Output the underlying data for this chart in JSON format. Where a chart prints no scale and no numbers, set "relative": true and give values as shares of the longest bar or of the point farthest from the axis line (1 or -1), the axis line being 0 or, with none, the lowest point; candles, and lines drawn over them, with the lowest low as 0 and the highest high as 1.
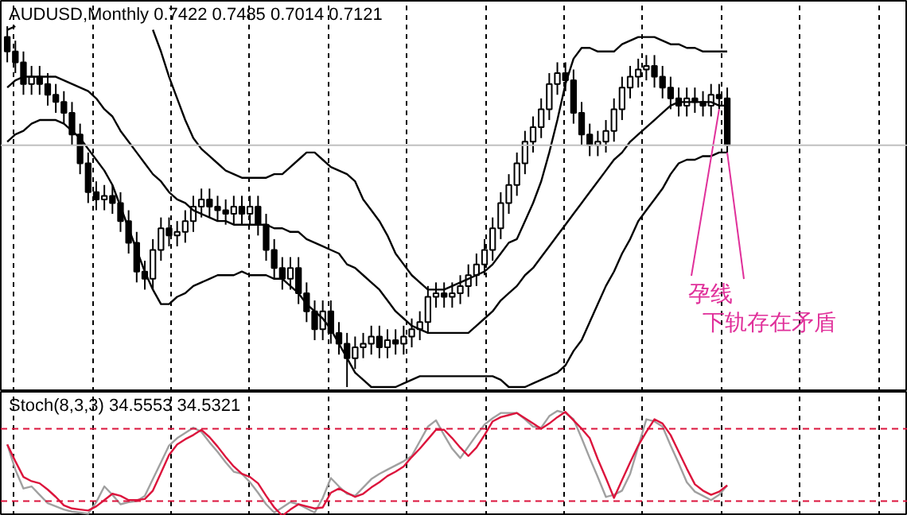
{
  "chart_data": [
    {
      "type": "candlestick",
      "title": "AUDUSD,Monthly 0.7422 0.7485 0.7014 0.7121",
      "relative": true,
      "tick_labels": false,
      "grid": "x",
      "categories": [
        null,
        null,
        null,
        null,
        null,
        null,
        null,
        null,
        null,
        null,
        null,
        null,
        null,
        null,
        null,
        null,
        null,
        null,
        null,
        null,
        null,
        null,
        null,
        null,
        null,
        null,
        null,
        null,
        null,
        null,
        null,
        null,
        null,
        null,
        null,
        null,
        null,
        null,
        null,
        null,
        null,
        null,
        null,
        null,
        null,
        null,
        null,
        null,
        null,
        null,
        null,
        null,
        null,
        null,
        null,
        null,
        null,
        null,
        null,
        null,
        null,
        null,
        null,
        null,
        null,
        null,
        null,
        null,
        null,
        null,
        null,
        null,
        null,
        null,
        null,
        null,
        null,
        null,
        null,
        null,
        null,
        null,
        null,
        null,
        null,
        null,
        null,
        null,
        null,
        null
      ],
      "ohlc": [
        [
          0.97,
          1.0,
          0.9,
          0.93
        ],
        [
          0.93,
          0.96,
          0.87,
          0.9
        ],
        [
          0.9,
          0.93,
          0.81,
          0.84
        ],
        [
          0.84,
          0.89,
          0.81,
          0.86
        ],
        [
          0.86,
          0.89,
          0.81,
          0.84
        ],
        [
          0.84,
          0.87,
          0.78,
          0.81
        ],
        [
          0.81,
          0.84,
          0.76,
          0.79
        ],
        [
          0.79,
          0.82,
          0.73,
          0.76
        ],
        [
          0.76,
          0.79,
          0.67,
          0.7
        ],
        [
          0.7,
          0.73,
          0.59,
          0.62
        ],
        [
          0.62,
          0.65,
          0.51,
          0.54
        ],
        [
          0.54,
          0.57,
          0.49,
          0.52
        ],
        [
          0.52,
          0.56,
          0.49,
          0.53
        ],
        [
          0.53,
          0.56,
          0.48,
          0.51
        ],
        [
          0.51,
          0.54,
          0.43,
          0.46
        ],
        [
          0.46,
          0.49,
          0.37,
          0.4
        ],
        [
          0.4,
          0.43,
          0.29,
          0.32
        ],
        [
          0.32,
          0.35,
          0.27,
          0.3
        ],
        [
          0.3,
          0.41,
          0.27,
          0.38
        ],
        [
          0.38,
          0.47,
          0.35,
          0.44
        ],
        [
          0.44,
          0.47,
          0.39,
          0.42
        ],
        [
          0.42,
          0.46,
          0.39,
          0.43
        ],
        [
          0.43,
          0.49,
          0.4,
          0.46
        ],
        [
          0.46,
          0.53,
          0.43,
          0.5
        ],
        [
          0.5,
          0.55,
          0.47,
          0.52
        ],
        [
          0.52,
          0.55,
          0.47,
          0.5
        ],
        [
          0.5,
          0.53,
          0.46,
          0.49
        ],
        [
          0.49,
          0.52,
          0.45,
          0.48
        ],
        [
          0.48,
          0.53,
          0.45,
          0.5
        ],
        [
          0.5,
          0.53,
          0.45,
          0.48
        ],
        [
          0.48,
          0.53,
          0.45,
          0.5
        ],
        [
          0.5,
          0.53,
          0.42,
          0.45
        ],
        [
          0.45,
          0.48,
          0.35,
          0.38
        ],
        [
          0.38,
          0.41,
          0.3,
          0.33
        ],
        [
          0.33,
          0.36,
          0.27,
          0.3
        ],
        [
          0.3,
          0.36,
          0.27,
          0.33
        ],
        [
          0.33,
          0.36,
          0.23,
          0.26
        ],
        [
          0.26,
          0.29,
          0.18,
          0.21
        ],
        [
          0.21,
          0.24,
          0.13,
          0.16
        ],
        [
          0.16,
          0.24,
          0.13,
          0.21
        ],
        [
          0.21,
          0.24,
          0.12,
          0.15
        ],
        [
          0.15,
          0.18,
          0.09,
          0.12
        ],
        [
          0.12,
          0.15,
          0.0,
          0.08
        ],
        [
          0.08,
          0.14,
          0.05,
          0.11
        ],
        [
          0.11,
          0.15,
          0.08,
          0.12
        ],
        [
          0.12,
          0.17,
          0.09,
          0.14
        ],
        [
          0.14,
          0.17,
          0.08,
          0.11
        ],
        [
          0.11,
          0.16,
          0.08,
          0.13
        ],
        [
          0.13,
          0.16,
          0.09,
          0.12
        ],
        [
          0.12,
          0.17,
          0.09,
          0.14
        ],
        [
          0.14,
          0.19,
          0.11,
          0.16
        ],
        [
          0.16,
          0.21,
          0.13,
          0.18
        ],
        [
          0.18,
          0.28,
          0.15,
          0.25
        ],
        [
          0.25,
          0.29,
          0.22,
          0.26
        ],
        [
          0.26,
          0.29,
          0.22,
          0.25
        ],
        [
          0.25,
          0.29,
          0.22,
          0.26
        ],
        [
          0.26,
          0.31,
          0.23,
          0.28
        ],
        [
          0.28,
          0.34,
          0.25,
          0.31
        ],
        [
          0.31,
          0.37,
          0.28,
          0.34
        ],
        [
          0.34,
          0.41,
          0.31,
          0.38
        ],
        [
          0.38,
          0.47,
          0.35,
          0.44
        ],
        [
          0.44,
          0.54,
          0.41,
          0.51
        ],
        [
          0.51,
          0.59,
          0.48,
          0.56
        ],
        [
          0.56,
          0.65,
          0.53,
          0.62
        ],
        [
          0.62,
          0.71,
          0.59,
          0.68
        ],
        [
          0.68,
          0.75,
          0.65,
          0.72
        ],
        [
          0.72,
          0.8,
          0.69,
          0.77
        ],
        [
          0.77,
          0.87,
          0.74,
          0.84
        ],
        [
          0.84,
          0.9,
          0.81,
          0.87
        ],
        [
          0.87,
          0.9,
          0.82,
          0.85
        ],
        [
          0.85,
          0.88,
          0.73,
          0.76
        ],
        [
          0.76,
          0.79,
          0.67,
          0.7
        ],
        [
          0.7,
          0.73,
          0.64,
          0.67
        ],
        [
          0.67,
          0.71,
          0.64,
          0.68
        ],
        [
          0.68,
          0.74,
          0.65,
          0.71
        ],
        [
          0.71,
          0.8,
          0.68,
          0.77
        ],
        [
          0.77,
          0.86,
          0.74,
          0.83
        ],
        [
          0.83,
          0.89,
          0.8,
          0.86
        ],
        [
          0.86,
          0.91,
          0.83,
          0.88
        ],
        [
          0.88,
          0.92,
          0.85,
          0.89
        ],
        [
          0.89,
          0.92,
          0.83,
          0.86
        ],
        [
          0.86,
          0.89,
          0.8,
          0.83
        ],
        [
          0.83,
          0.86,
          0.77,
          0.8
        ],
        [
          0.8,
          0.83,
          0.75,
          0.78
        ],
        [
          0.78,
          0.83,
          0.75,
          0.8
        ],
        [
          0.8,
          0.83,
          0.76,
          0.79
        ],
        [
          0.79,
          0.82,
          0.75,
          0.78
        ],
        [
          0.78,
          0.84,
          0.75,
          0.81
        ],
        [
          0.81,
          0.84,
          0.77,
          0.8
        ],
        [
          0.8,
          0.83,
          0.65,
          0.67
        ]
      ],
      "series": [
        {
          "type": "line",
          "color": "#000000",
          "values": [
            0.99,
            1.0,
            null,
            null,
            null,
            null,
            null,
            null,
            null,
            null,
            null,
            null,
            null,
            null,
            null,
            null,
            null,
            null,
            0.99,
            0.93,
            0.86,
            0.8,
            0.74,
            0.69,
            0.66,
            0.64,
            0.62,
            0.6,
            0.59,
            0.58,
            0.58,
            0.58,
            0.58,
            0.59,
            0.59,
            0.61,
            0.63,
            0.65,
            0.65,
            0.63,
            0.61,
            0.6,
            0.59,
            0.57,
            0.52,
            0.49,
            0.46,
            0.42,
            0.37,
            0.34,
            0.31,
            0.29,
            0.27,
            0.27,
            0.27,
            0.28,
            0.29,
            0.3,
            0.31,
            0.32,
            0.34,
            0.37,
            0.4,
            0.41,
            0.46,
            0.51,
            0.57,
            0.65,
            0.74,
            0.84,
            0.91,
            0.94,
            0.94,
            0.93,
            0.93,
            0.93,
            0.95,
            0.96,
            0.97,
            0.97,
            0.97,
            0.96,
            0.95,
            0.95,
            0.94,
            0.94,
            0.93,
            0.93,
            0.93,
            0.93
          ]
        },
        {
          "type": "line",
          "color": "#000000",
          "values": [
            0.83,
            0.85,
            0.86,
            0.86,
            0.86,
            0.86,
            0.86,
            0.85,
            0.84,
            0.83,
            0.82,
            0.8,
            0.77,
            0.75,
            0.71,
            0.68,
            0.65,
            0.62,
            0.59,
            0.57,
            0.54,
            0.52,
            0.51,
            0.49,
            0.48,
            0.47,
            0.46,
            0.46,
            0.45,
            0.45,
            0.45,
            0.45,
            0.45,
            0.44,
            0.44,
            0.43,
            0.43,
            0.41,
            0.4,
            0.39,
            0.38,
            0.37,
            0.34,
            0.33,
            0.31,
            0.29,
            0.27,
            0.24,
            0.21,
            0.19,
            0.17,
            0.16,
            0.15,
            0.15,
            0.15,
            0.15,
            0.15,
            0.15,
            0.17,
            0.19,
            0.21,
            0.24,
            0.26,
            0.28,
            0.31,
            0.33,
            0.36,
            0.39,
            0.42,
            0.45,
            0.48,
            0.51,
            0.54,
            0.57,
            0.6,
            0.63,
            0.65,
            0.68,
            0.7,
            0.72,
            0.74,
            0.76,
            0.78,
            0.79,
            0.79,
            0.79,
            0.79,
            0.79,
            0.78,
            0.78
          ]
        },
        {
          "type": "line",
          "color": "#000000",
          "values": [
            0.68,
            0.7,
            0.71,
            0.73,
            0.74,
            0.74,
            0.74,
            0.73,
            0.71,
            0.69,
            0.66,
            0.63,
            0.6,
            0.56,
            0.5,
            0.44,
            0.38,
            0.32,
            0.27,
            0.23,
            0.23,
            0.25,
            0.26,
            0.28,
            0.29,
            0.3,
            0.31,
            0.31,
            0.31,
            0.32,
            0.31,
            0.31,
            0.31,
            0.3,
            0.3,
            0.28,
            0.26,
            0.23,
            0.21,
            0.19,
            0.16,
            0.12,
            0.08,
            0.04,
            0.02,
            0.0,
            0.0,
            0.0,
            0.0,
            0.01,
            0.02,
            0.03,
            0.03,
            0.03,
            0.03,
            0.03,
            0.03,
            0.03,
            0.03,
            0.03,
            0.03,
            0.02,
            0.0,
            0.0,
            0.0,
            0.01,
            0.02,
            0.03,
            0.04,
            0.06,
            0.1,
            0.13,
            0.18,
            0.23,
            0.28,
            0.32,
            0.37,
            0.41,
            0.46,
            0.49,
            0.52,
            0.55,
            0.59,
            0.62,
            0.63,
            0.63,
            0.64,
            0.64,
            0.65,
            0.65
          ]
        }
      ],
      "ref_lines": [
        {
          "axis": "y",
          "value": 0.67,
          "color": "#c0c0c0",
          "line_style": "solid"
        }
      ],
      "annotations": [
        "孕线",
        "下轨存在矛盾"
      ]
    },
    {
      "type": "line",
      "title": "Stoch(8,3,3) 34.5553 34.5321",
      "relative": true,
      "tick_labels": false,
      "grid": "x",
      "categories": [
        null,
        null,
        null,
        null,
        null,
        null,
        null,
        null,
        null,
        null,
        null,
        null,
        null,
        null,
        null,
        null,
        null,
        null,
        null,
        null,
        null,
        null,
        null,
        null,
        null,
        null,
        null,
        null,
        null,
        null,
        null,
        null,
        null,
        null,
        null,
        null,
        null,
        null,
        null,
        null,
        null,
        null,
        null,
        null,
        null,
        null,
        null,
        null,
        null,
        null,
        null,
        null,
        null,
        null,
        null,
        null,
        null,
        null,
        null,
        null,
        null,
        null,
        null,
        null,
        null,
        null,
        null,
        null,
        null,
        null,
        null,
        null,
        null,
        null,
        null,
        null,
        null,
        null,
        null,
        null,
        null,
        null,
        null,
        null,
        null,
        null,
        null,
        null,
        null,
        null
      ],
      "series": [
        {
          "color": "#a0a0a0",
          "values": [
            0.68,
            0.44,
            0.26,
            0.28,
            0.2,
            0.12,
            0.09,
            0.06,
            0.04,
            0.03,
            0.02,
            0.13,
            0.28,
            0.2,
            0.11,
            0.13,
            0.14,
            0.19,
            0.35,
            0.51,
            0.67,
            0.74,
            0.79,
            0.84,
            0.8,
            0.7,
            0.61,
            0.51,
            0.42,
            0.4,
            0.32,
            0.22,
            0.11,
            0.03,
            0.08,
            0.13,
            0.11,
            0.07,
            0.03,
            0.17,
            0.36,
            0.28,
            0.21,
            0.19,
            0.27,
            0.35,
            0.4,
            0.44,
            0.48,
            0.52,
            0.57,
            0.71,
            0.85,
            0.91,
            0.77,
            0.64,
            0.55,
            0.66,
            0.77,
            0.87,
            0.93,
            0.98,
            0.98,
            0.98,
            0.92,
            0.85,
            0.84,
            0.95,
            1.0,
            0.98,
            0.92,
            0.74,
            0.55,
            0.37,
            0.18,
            0.2,
            0.24,
            0.4,
            0.66,
            0.92,
            0.9,
            0.85,
            0.67,
            0.5,
            0.32,
            0.23,
            0.19,
            0.15,
            0.2,
            0.29
          ]
        },
        {
          "color": "#dc143c",
          "values": [
            0.68,
            0.52,
            0.37,
            0.33,
            0.31,
            0.25,
            0.18,
            0.1,
            0.07,
            0.06,
            0.05,
            0.09,
            0.15,
            0.21,
            0.19,
            0.15,
            0.15,
            0.16,
            0.24,
            0.41,
            0.58,
            0.68,
            0.73,
            0.77,
            0.82,
            0.75,
            0.66,
            0.56,
            0.47,
            0.4,
            0.37,
            0.31,
            0.19,
            0.08,
            0.0,
            0.06,
            0.11,
            0.09,
            0.07,
            0.08,
            0.22,
            0.26,
            0.22,
            0.18,
            0.21,
            0.27,
            0.32,
            0.38,
            0.42,
            0.47,
            0.56,
            0.64,
            0.73,
            0.82,
            0.82,
            0.74,
            0.65,
            0.57,
            0.65,
            0.77,
            0.9,
            0.94,
            0.96,
            0.98,
            0.93,
            0.88,
            0.83,
            0.88,
            0.94,
            0.99,
            0.91,
            0.83,
            0.74,
            0.54,
            0.36,
            0.17,
            0.34,
            0.51,
            0.67,
            0.8,
            0.92,
            0.88,
            0.77,
            0.61,
            0.45,
            0.3,
            0.24,
            0.2,
            0.23,
            0.29
          ]
        }
      ],
      "ref_lines": [
        {
          "axis": "y",
          "value": 0.83,
          "color": "#dc143c",
          "line_style": "dashed"
        },
        {
          "axis": "y",
          "value": 0.14,
          "color": "#dc143c",
          "line_style": "dashed"
        }
      ]
    }
  ]
}
